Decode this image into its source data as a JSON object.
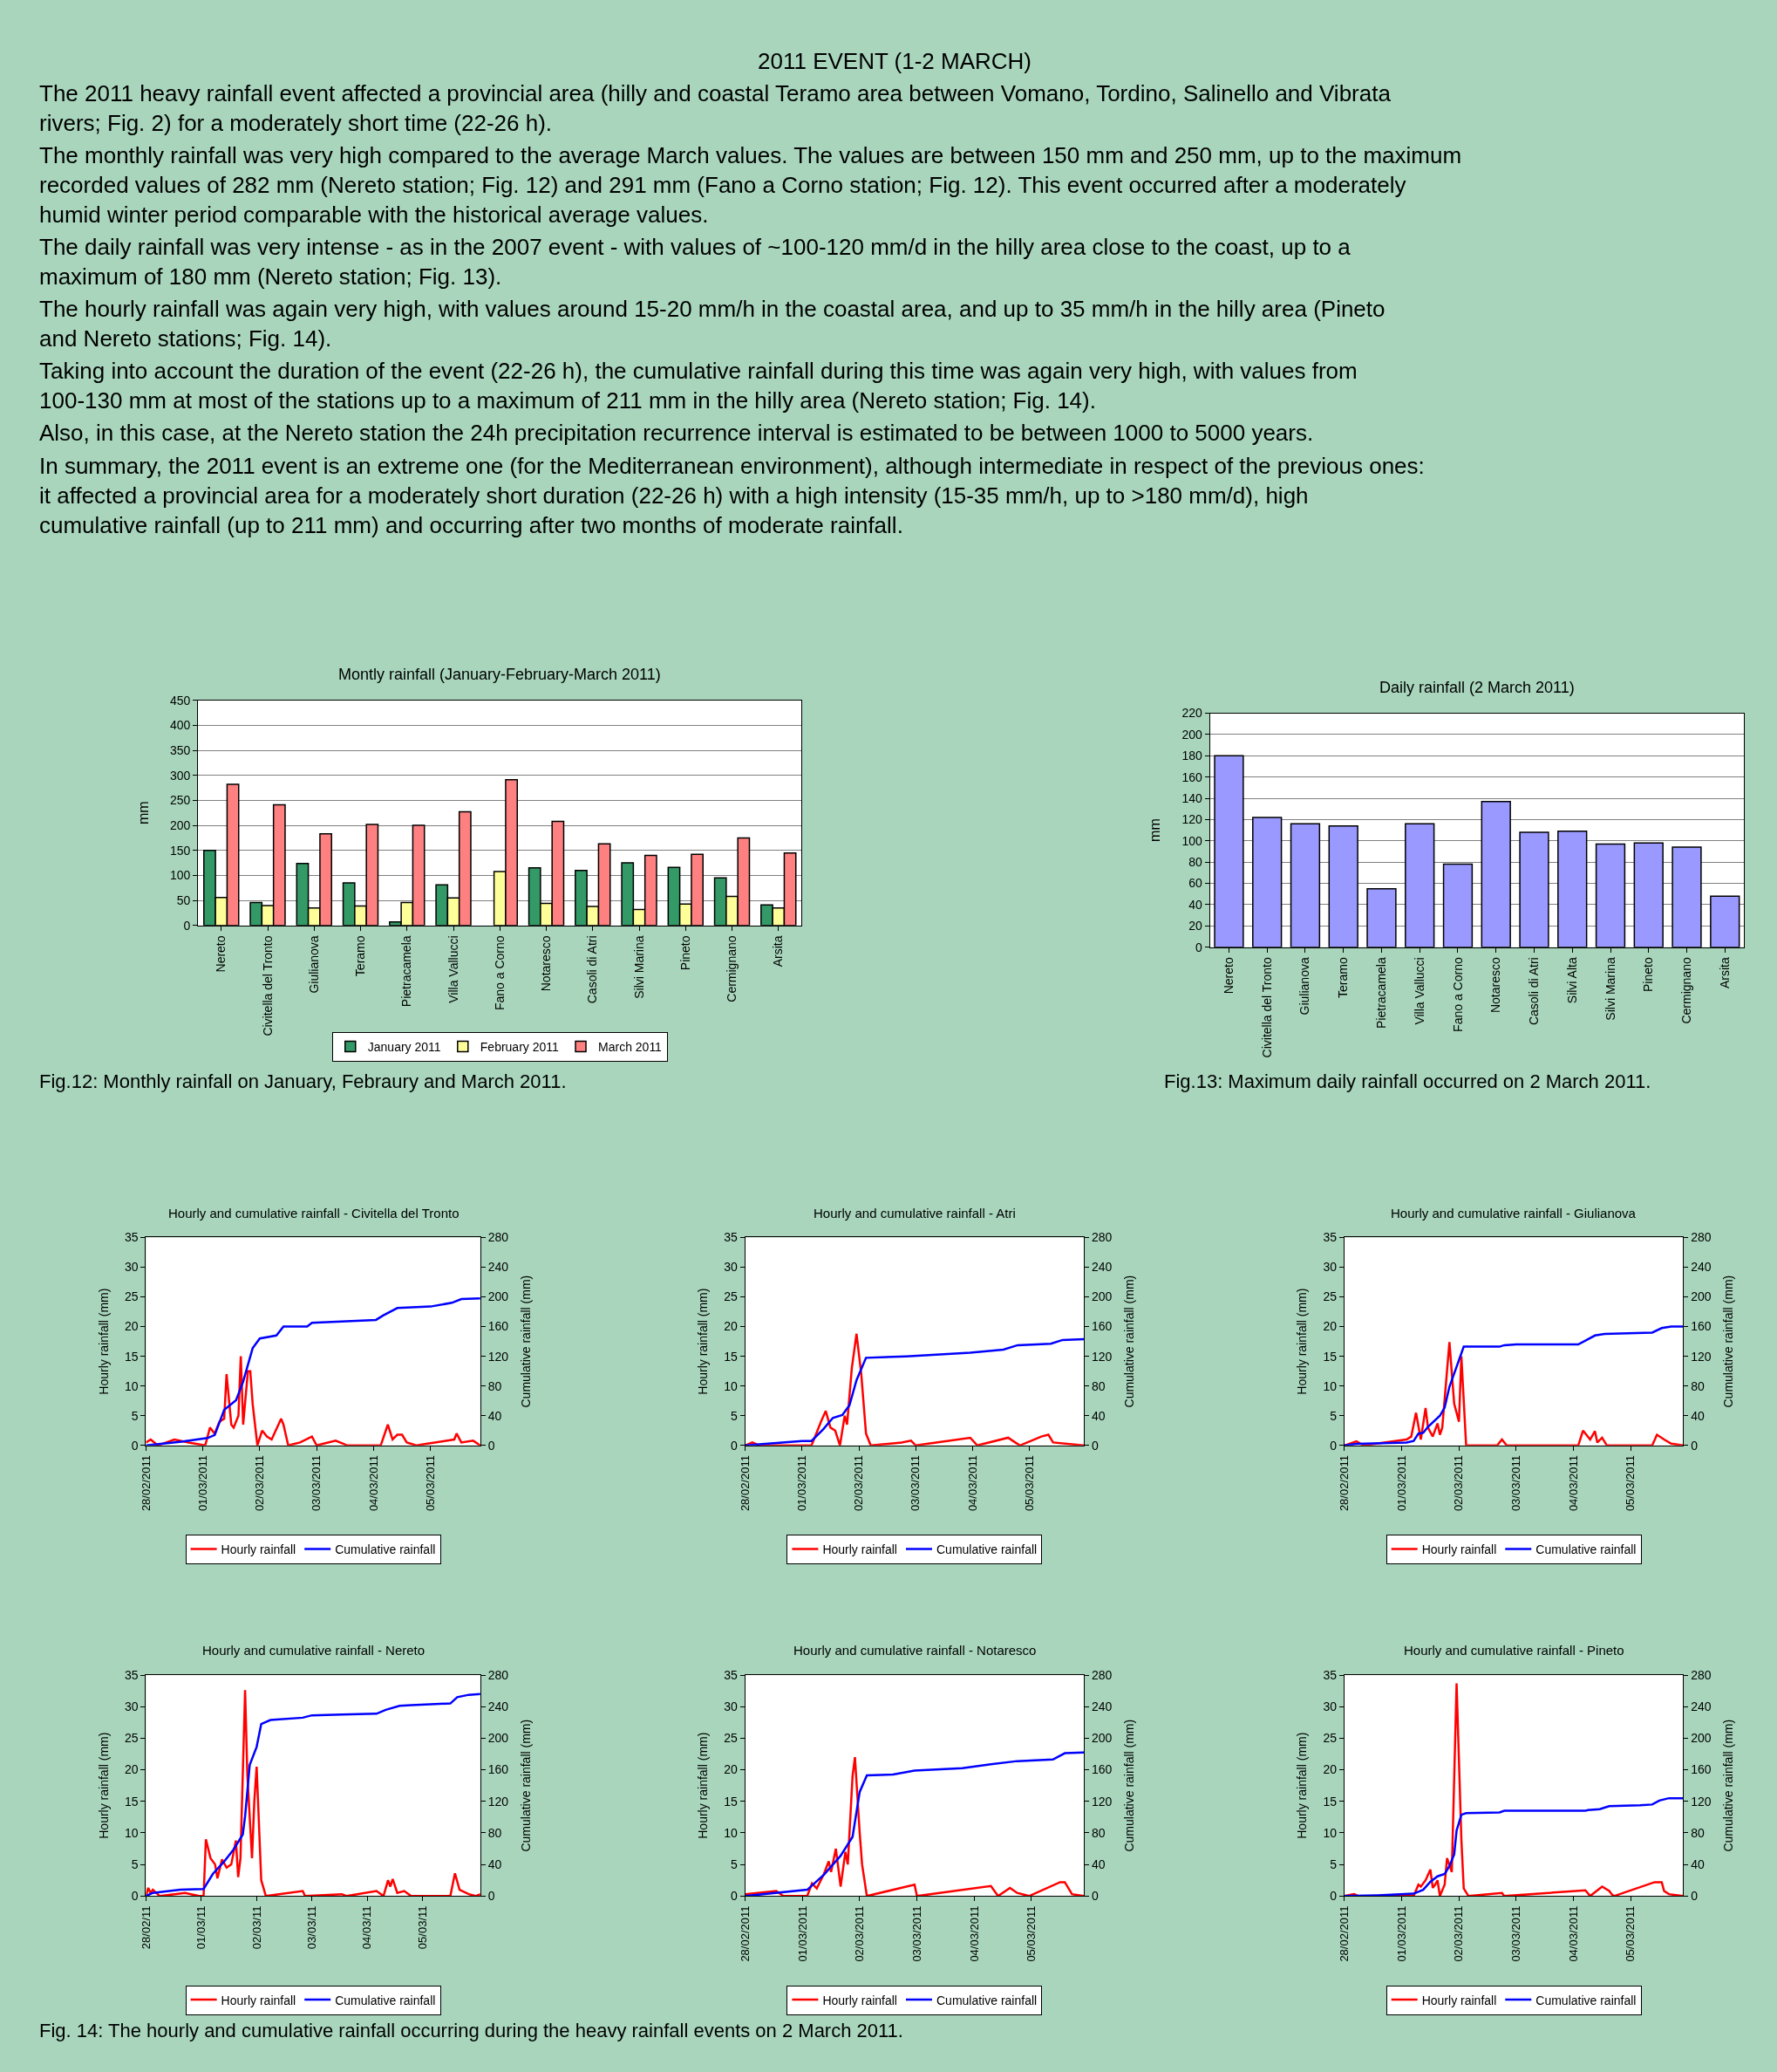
{
  "chart_data": [
    {
      "type": "other",
      "title": "2011 EVENT (1-2 MARCH)",
      "annotations": [
        "The 2011 heavy rainfall event affected a provincial area (hilly and coastal Teramo area between Vomano, Tordino, Salinello and Vibrata rivers; Fig. 2) for a moderately short time (22-26 h).",
        "The monthly rainfall was very high compared to the average March values. The values are between 150 mm and 250 mm, up to the maximum recorded values of 282 mm (Nereto station; Fig. 12) and 291 mm (Fano a Corno station; Fig. 12). This event occurred after a moderately humid winter period comparable with the historical average values.",
        "The daily rainfall was very intense - as in the 2007 event - with values of ~100-120 mm/d in the hilly area close to the coast, up to a maximum of 180 mm (Nereto station; Fig. 13).",
        "The hourly rainfall was again very high, with values around 15-20 mm/h in the coastal area, and up to 35 mm/h in the hilly area (Pineto and Nereto stations; Fig. 14).",
        "Taking into account the duration of the event (22-26 h), the cumulative rainfall during this time was again very high, with values from 100-130 mm at most of the stations up to a maximum of 211 mm in the hilly area (Nereto station; Fig. 14).",
        "Also, in this case, at the Nereto station the 24h precipitation recurrence interval is estimated to be between 1000 to 5000 years.",
        "In summary, the 2011 event is an extreme one (for the Mediterranean environment), although intermediate in respect of the previous ones: it affected a provincial area for a moderately short duration (22-26 h) with a high intensity (15-35 mm/h, up to >180 mm/d), high cumulative rainfall (up to 211 mm) and occurring after two months of moderate rainfall."
      ]
    },
    {
      "type": "bar",
      "title": "Montly rainfall (January-February-March 2011)",
      "ylabel": "mm",
      "categories": [
        "Nereto",
        "Civitella del Tronto",
        "Giulianova",
        "Teramo",
        "Pietracamela",
        "Villa Vallucci",
        "Fano a Corno",
        "Notaresco",
        "Casoli di Atri",
        "Silvi Marina",
        "Pineto",
        "Cermignano",
        "Arsita"
      ],
      "series": [
        {
          "name": "January 2011",
          "color": "#339966",
          "values": [
            150,
            46,
            124,
            85,
            7,
            81,
            null,
            115,
            110,
            125,
            116,
            95,
            41
          ]
        },
        {
          "name": "February 2011",
          "color": "#ffff99",
          "values": [
            56,
            40,
            35,
            39,
            46,
            55,
            108,
            44,
            38,
            32,
            43,
            58,
            35
          ]
        },
        {
          "name": "March 2011",
          "color": "#ff8080",
          "values": [
            282,
            241,
            183,
            202,
            200,
            227,
            291,
            208,
            163,
            140,
            142,
            175,
            145
          ]
        }
      ],
      "ylim": [
        0,
        450
      ],
      "yticks": [
        0,
        50,
        100,
        150,
        200,
        250,
        300,
        350,
        400,
        450
      ],
      "grid": "y",
      "legend": "bottom",
      "annotations": [
        "Fig.12: Monthly rainfall on January, Febraury and March 2011."
      ]
    },
    {
      "type": "bar",
      "title": "Daily rainfall (2 March 2011)",
      "ylabel": "mm",
      "categories": [
        "Nereto",
        "Civitella del Tronto",
        "Giulianova",
        "Teramo",
        "Pietracamela",
        "Villa Vallucci",
        "Fano a Corno",
        "Notaresco",
        "Casoli di Atri",
        "Silvi Alta",
        "Silvi Marina",
        "Pineto",
        "Cermignano",
        "Arsita"
      ],
      "values": [
        180,
        122,
        116,
        114,
        55,
        116,
        78,
        137,
        108,
        109,
        97,
        98,
        94,
        48
      ],
      "color": "#9999ff",
      "ylim": [
        0,
        220
      ],
      "yticks": [
        0,
        20,
        40,
        60,
        80,
        100,
        120,
        140,
        160,
        180,
        200,
        220
      ],
      "grid": "y",
      "annotations": [
        "Fig.13: Maximum daily rainfall occurred on 2 March 2011."
      ]
    },
    {
      "type": "line",
      "title": "Hourly and cumulative rainfall - Civitella del Tronto",
      "ylabel": "Hourly rainfall (mm)",
      "y2label": "Cumulative rainfall (mm)",
      "legend": "bottom",
      "xlim": [
        "2011-02-28T00:00",
        "2011-03-05T21:00"
      ],
      "xticks": [
        {
          "value": "2011-02-28",
          "label": "28/02/2011"
        },
        {
          "value": "2011-03-01",
          "label": "01/03/2011"
        },
        {
          "value": "2011-03-02",
          "label": "02/03/2011"
        },
        {
          "value": "2011-03-03",
          "label": "03/03/2011"
        },
        {
          "value": "2011-03-04",
          "label": "04/03/2011"
        },
        {
          "value": "2011-03-05",
          "label": "05/03/2011"
        }
      ],
      "ylim": [
        0,
        35
      ],
      "yticks": [
        0,
        5,
        10,
        15,
        20,
        25,
        30,
        35
      ],
      "y2lim": [
        0,
        280
      ],
      "y2ticks": [
        0,
        40,
        80,
        120,
        160,
        200,
        240,
        280
      ],
      "series": [
        {
          "name": "Hourly rainfall",
          "color": "#ff0000",
          "x": [
            "2011-02-28T00:00",
            "2011-02-28T02:00",
            "2011-02-28T05:00",
            "2011-02-28T12:00",
            "2011-02-28T18:00",
            "2011-03-01T01:00",
            "2011-03-01T03:00",
            "2011-03-01T05:00",
            "2011-03-01T07:00",
            "2011-03-01T09:00",
            "2011-03-01T10:00",
            "2011-03-01T12:00",
            "2011-03-01T13:00",
            "2011-03-01T15:00",
            "2011-03-01T16:00",
            "2011-03-01T17:00",
            "2011-03-01T19:00",
            "2011-03-01T20:00",
            "2011-03-01T21:00",
            "2011-03-01T23:00",
            "2011-03-02T01:00",
            "2011-03-02T03:00",
            "2011-03-02T05:00",
            "2011-03-02T09:00",
            "2011-03-02T10:00",
            "2011-03-02T12:00",
            "2011-03-02T17:00",
            "2011-03-02T22:00",
            "2011-03-03T00:00",
            "2011-03-03T08:00",
            "2011-03-03T13:00",
            "2011-03-04T03:00",
            "2011-03-04T06:00",
            "2011-03-04T08:00",
            "2011-03-04T10:00",
            "2011-03-04T12:00",
            "2011-03-04T14:00",
            "2011-03-04T18:00",
            "2011-03-05T10:00",
            "2011-03-05T11:00",
            "2011-03-05T13:00",
            "2011-03-05T18:00",
            "2011-03-05T21:00"
          ],
          "values": [
            0.5,
            1,
            0,
            1,
            0.5,
            0,
            3,
            2,
            4,
            4.5,
            12,
            3.5,
            3,
            5,
            15,
            3.5,
            12.5,
            12.5,
            7,
            0,
            2.5,
            1.5,
            1,
            4.5,
            3.5,
            0,
            0.5,
            1.5,
            0,
            0.8,
            0,
            0,
            3.5,
            1,
            1.8,
            1.8,
            0.5,
            0,
            1,
            2,
            0.5,
            0.8,
            0
          ]
        },
        {
          "name": "Cumulative rainfall",
          "color": "#0000ff",
          "axis": "y2",
          "x": [
            "2011-02-28T00:00",
            "2011-02-28T15:00",
            "2011-03-01T02:00",
            "2011-03-01T05:00",
            "2011-03-01T09:00",
            "2011-03-01T14:00",
            "2011-03-01T17:00",
            "2011-03-01T21:00",
            "2011-03-02T00:00",
            "2011-03-02T07:00",
            "2011-03-02T10:00",
            "2011-03-02T20:00",
            "2011-03-02T22:00",
            "2011-03-04T01:00",
            "2011-03-04T04:00",
            "2011-03-04T10:00",
            "2011-03-05T00:00",
            "2011-03-05T09:00",
            "2011-03-05T13:00",
            "2011-03-05T21:00"
          ],
          "values": [
            0,
            5,
            10,
            14,
            48,
            61,
            86,
            131,
            144,
            148,
            160,
            160,
            165,
            169,
            175,
            185,
            187,
            192,
            197,
            198
          ]
        }
      ]
    },
    {
      "type": "line",
      "title": "Hourly and cumulative rainfall - Atri",
      "ylabel": "Hourly rainfall (mm)",
      "y2label": "Cumulative rainfall (mm)",
      "legend": "bottom",
      "xlim": [
        "2011-02-28T00:00",
        "2011-03-05T23:00"
      ],
      "xticks": [
        {
          "value": "2011-02-28",
          "label": "28/02/2011"
        },
        {
          "value": "2011-03-01",
          "label": "01/03/2011"
        },
        {
          "value": "2011-03-02",
          "label": "02/03/2011"
        },
        {
          "value": "2011-03-03",
          "label": "03/03/2011"
        },
        {
          "value": "2011-03-04",
          "label": "04/03/2011"
        },
        {
          "value": "2011-03-05",
          "label": "05/03/2011"
        }
      ],
      "ylim": [
        0,
        35
      ],
      "yticks": [
        0,
        5,
        10,
        15,
        20,
        25,
        30,
        35
      ],
      "y2lim": [
        0,
        280
      ],
      "y2ticks": [
        0,
        40,
        80,
        120,
        160,
        200,
        240,
        280
      ],
      "series": [
        {
          "name": "Hourly rainfall",
          "color": "#ff0000",
          "x": [
            "2011-02-28T00:00",
            "2011-02-28T03:00",
            "2011-02-28T06:00",
            "2011-03-01T04:00",
            "2011-03-01T06:00",
            "2011-03-01T08:00",
            "2011-03-01T10:00",
            "2011-03-01T12:00",
            "2011-03-01T14:00",
            "2011-03-01T16:00",
            "2011-03-01T18:00",
            "2011-03-01T19:00",
            "2011-03-01T21:00",
            "2011-03-01T23:00",
            "2011-03-02T01:00",
            "2011-03-02T03:00",
            "2011-03-02T05:00",
            "2011-03-02T18:00",
            "2011-03-02T22:00",
            "2011-03-03T00:00",
            "2011-03-03T23:00",
            "2011-03-04T02:00",
            "2011-03-04T15:00",
            "2011-03-04T18:00",
            "2011-03-04T20:00",
            "2011-03-05T05:00",
            "2011-03-05T08:00",
            "2011-03-05T10:00",
            "2011-03-05T23:00"
          ],
          "values": [
            0,
            0.5,
            0,
            0,
            2,
            4,
            5.8,
            3,
            2.5,
            0,
            5,
            3.5,
            13,
            18.8,
            12,
            2,
            0,
            0.5,
            0.8,
            0,
            1.3,
            0,
            1.3,
            0.5,
            0,
            1.5,
            1.8,
            0.5,
            0
          ]
        },
        {
          "name": "Cumulative rainfall",
          "color": "#0000ff",
          "axis": "y2",
          "x": [
            "2011-02-28T00:00",
            "2011-03-01T00:00",
            "2011-03-01T04:00",
            "2011-03-01T09:00",
            "2011-03-01T13:00",
            "2011-03-01T17:00",
            "2011-03-01T20:00",
            "2011-03-01T23:00",
            "2011-03-02T03:00",
            "2011-03-02T20:00",
            "2011-03-03T23:00",
            "2011-03-04T13:00",
            "2011-03-04T19:00",
            "2011-03-05T09:00",
            "2011-03-05T14:00",
            "2011-03-05T23:00"
          ],
          "values": [
            0,
            6,
            6,
            22,
            37,
            41,
            54,
            88,
            118,
            120,
            125,
            129,
            135,
            137,
            142,
            143
          ]
        }
      ]
    },
    {
      "type": "line",
      "title": "Hourly and cumulative rainfall - Giulianova",
      "ylabel": "Hourly rainfall (mm)",
      "y2label": "Cumulative rainfall (mm)",
      "legend": "bottom",
      "xlim": [
        "2011-02-28T00:00",
        "2011-03-05T22:00"
      ],
      "xticks": [
        {
          "value": "2011-02-28",
          "label": "28/02/2011"
        },
        {
          "value": "2011-03-01",
          "label": "01/03/2011"
        },
        {
          "value": "2011-03-02",
          "label": "02/03/2011"
        },
        {
          "value": "2011-03-03",
          "label": "03/03/2011"
        },
        {
          "value": "2011-03-04",
          "label": "04/03/2011"
        },
        {
          "value": "2011-03-05",
          "label": "05/03/2011"
        }
      ],
      "ylim": [
        0,
        35
      ],
      "yticks": [
        0,
        5,
        10,
        15,
        20,
        25,
        30,
        35
      ],
      "y2lim": [
        0,
        280
      ],
      "y2ticks": [
        0,
        40,
        80,
        120,
        160,
        200,
        240,
        280
      ],
      "series": [
        {
          "name": "Hourly rainfall",
          "color": "#ff0000",
          "x": [
            "2011-02-28T00:00",
            "2011-02-28T05:00",
            "2011-02-28T08:00",
            "2011-03-01T02:00",
            "2011-03-01T04:00",
            "2011-03-01T06:00",
            "2011-03-01T08:00",
            "2011-03-01T10:00",
            "2011-03-01T11:00",
            "2011-03-01T13:00",
            "2011-03-01T15:00",
            "2011-03-01T16:00",
            "2011-03-01T17:00",
            "2011-03-01T20:00",
            "2011-03-01T22:00",
            "2011-03-02T00:00",
            "2011-03-02T01:00",
            "2011-03-02T03:00",
            "2011-03-02T16:00",
            "2011-03-02T18:00",
            "2011-03-02T20:00",
            "2011-03-04T02:00",
            "2011-03-04T04:00",
            "2011-03-04T07:00",
            "2011-03-04T09:00",
            "2011-03-04T10:00",
            "2011-03-04T12:00",
            "2011-03-04T14:00",
            "2011-03-05T09:00",
            "2011-03-05T11:00",
            "2011-03-05T14:00",
            "2011-03-05T17:00",
            "2011-03-05T22:00"
          ],
          "values": [
            0,
            0.7,
            0,
            1,
            1.5,
            5.5,
            1,
            6.3,
            3,
            1.5,
            3.7,
            1.8,
            3,
            17.4,
            7,
            4,
            15,
            0,
            0,
            1,
            0,
            0,
            2.5,
            1,
            2.4,
            0.5,
            1.3,
            0,
            0,
            1.8,
            1,
            0.3,
            0
          ]
        },
        {
          "name": "Cumulative rainfall",
          "color": "#0000ff",
          "axis": "y2",
          "x": [
            "2011-02-28T00:00",
            "2011-02-28T05:00",
            "2011-03-01T02:00",
            "2011-03-01T05:00",
            "2011-03-01T07:00",
            "2011-03-01T09:00",
            "2011-03-01T11:00",
            "2011-03-01T16:00",
            "2011-03-01T18:00",
            "2011-03-01T20:00",
            "2011-03-01T23:00",
            "2011-03-02T02:00",
            "2011-03-02T17:00",
            "2011-03-02T19:00",
            "2011-03-03T00:00",
            "2011-03-04T02:00",
            "2011-03-04T09:00",
            "2011-03-04T13:00",
            "2011-03-05T09:00",
            "2011-03-05T13:00",
            "2011-03-05T17:00",
            "2011-03-05T22:00"
          ],
          "values": [
            0,
            2,
            4,
            6,
            16,
            17,
            25,
            40,
            51,
            79,
            106,
            133,
            133,
            135,
            136,
            136,
            148,
            150,
            152,
            158,
            160,
            160
          ]
        }
      ]
    },
    {
      "type": "line",
      "title": "Hourly and cumulative rainfall - Nereto",
      "ylabel": "Hourly rainfall (mm)",
      "y2label": "Cumulative rainfall (mm)",
      "legend": "bottom",
      "xlim": [
        "2011-02-28T00:00",
        "2011-03-06T01:00"
      ],
      "xticks": [
        {
          "value": "2011-02-28",
          "label": "28/02/11"
        },
        {
          "value": "2011-03-01",
          "label": "01/03/11"
        },
        {
          "value": "2011-03-02",
          "label": "02/03/11"
        },
        {
          "value": "2011-03-03",
          "label": "03/03/11"
        },
        {
          "value": "2011-03-04",
          "label": "04/03/11"
        },
        {
          "value": "2011-03-05",
          "label": "05/03/11"
        }
      ],
      "ylim": [
        0,
        35
      ],
      "yticks": [
        0,
        5,
        10,
        15,
        20,
        25,
        30,
        35
      ],
      "y2lim": [
        0,
        280
      ],
      "y2ticks": [
        0,
        40,
        80,
        120,
        160,
        200,
        240,
        280
      ],
      "series": [
        {
          "name": "Hourly rainfall",
          "color": "#ff0000",
          "x": [
            "2011-02-28T00:00",
            "2011-02-28T01:00",
            "2011-02-28T02:00",
            "2011-02-28T03:00",
            "2011-02-28T06:00",
            "2011-02-28T17:00",
            "2011-02-28T23:00",
            "2011-03-01T01:00",
            "2011-03-01T02:00",
            "2011-03-01T04:00",
            "2011-03-01T06:00",
            "2011-03-01T07:00",
            "2011-03-01T09:00",
            "2011-03-01T11:00",
            "2011-03-01T13:00",
            "2011-03-01T15:00",
            "2011-03-01T16:00",
            "2011-03-01T17:00",
            "2011-03-01T19:00",
            "2011-03-01T20:00",
            "2011-03-01T22:00",
            "2011-03-01T23:00",
            "2011-03-02T00:00",
            "2011-03-02T02:00",
            "2011-03-02T04:00",
            "2011-03-02T20:00",
            "2011-03-02T21:00",
            "2011-03-03T13:00",
            "2011-03-03T15:00",
            "2011-03-04T04:00",
            "2011-03-04T07:00",
            "2011-03-04T09:00",
            "2011-03-04T10:00",
            "2011-03-04T11:00",
            "2011-03-04T13:00",
            "2011-03-04T16:00",
            "2011-03-04T19:00",
            "2011-03-05T12:00",
            "2011-03-05T14:00",
            "2011-03-05T16:00",
            "2011-03-05T20:00",
            "2011-03-05T23:00",
            "2011-03-06T01:00"
          ],
          "values": [
            0,
            1.3,
            0.5,
            1,
            0,
            0.5,
            0,
            0,
            9,
            6,
            5,
            2.8,
            5.8,
            4.5,
            5,
            8.8,
            3,
            6,
            32.6,
            19,
            6,
            15,
            20.5,
            2.5,
            0,
            0.8,
            0,
            0.3,
            0,
            0.8,
            0,
            2.5,
            1.5,
            2.7,
            0.5,
            0.8,
            0,
            0,
            3.6,
            1,
            0.3,
            0,
            0.3
          ]
        },
        {
          "name": "Cumulative rainfall",
          "color": "#0000ff",
          "axis": "y2",
          "x": [
            "2011-02-28T00:00",
            "2011-02-28T03:00",
            "2011-02-28T15:00",
            "2011-03-01T01:00",
            "2011-03-01T05:00",
            "2011-03-01T10:00",
            "2011-03-01T14:00",
            "2011-03-01T18:00",
            "2011-03-01T19:00",
            "2011-03-01T21:00",
            "2011-03-02T00:00",
            "2011-03-02T02:00",
            "2011-03-02T06:00",
            "2011-03-02T20:00",
            "2011-03-03T00:00",
            "2011-03-03T13:00",
            "2011-03-04T04:00",
            "2011-03-04T08:00",
            "2011-03-04T14:00",
            "2011-03-04T19:00",
            "2011-03-05T12:00",
            "2011-03-05T15:00",
            "2011-03-05T20:00",
            "2011-03-06T01:00"
          ],
          "values": [
            0,
            4,
            8,
            9,
            28,
            44,
            59,
            78,
            101,
            166,
            189,
            218,
            223,
            226,
            229,
            230,
            231,
            236,
            241,
            242,
            244,
            252,
            255,
            256
          ]
        }
      ],
      "annotations": [
        "Fig. 14: The hourly and cumulative rainfall occurring during the heavy rainfall events on 2 March 2011."
      ]
    },
    {
      "type": "line",
      "title": "Hourly and cumulative rainfall - Notaresco",
      "ylabel": "Hourly rainfall (mm)",
      "y2label": "Cumulative rainfall (mm)",
      "legend": "bottom",
      "xlim": [
        "2011-02-28T00:00",
        "2011-03-05T22:00"
      ],
      "xticks": [
        {
          "value": "2011-02-28",
          "label": "28/02/2011"
        },
        {
          "value": "2011-03-01",
          "label": "01/03/2011"
        },
        {
          "value": "2011-03-02",
          "label": "02/03/2011"
        },
        {
          "value": "2011-03-03",
          "label": "03/03/2011"
        },
        {
          "value": "2011-03-04",
          "label": "04/03/2011"
        },
        {
          "value": "2011-03-05",
          "label": "05/03/2011"
        }
      ],
      "ylim": [
        0,
        35
      ],
      "yticks": [
        0,
        5,
        10,
        15,
        20,
        25,
        30,
        35
      ],
      "y2lim": [
        0,
        280
      ],
      "y2ticks": [
        0,
        40,
        80,
        120,
        160,
        200,
        240,
        280
      ],
      "series": [
        {
          "name": "Hourly rainfall",
          "color": "#ff0000",
          "x": [
            "2011-02-28T00:00",
            "2011-02-28T13:00",
            "2011-02-28T16:00",
            "2011-03-01T02:00",
            "2011-03-01T04:00",
            "2011-03-01T06:00",
            "2011-03-01T09:00",
            "2011-03-01T11:00",
            "2011-03-01T12:00",
            "2011-03-01T14:00",
            "2011-03-01T16:00",
            "2011-03-01T18:00",
            "2011-03-01T19:00",
            "2011-03-01T21:00",
            "2011-03-01T22:00",
            "2011-03-02T00:00",
            "2011-03-02T01:00",
            "2011-03-02T03:00",
            "2011-03-02T23:00",
            "2011-03-03T00:00",
            "2011-03-04T07:00",
            "2011-03-04T10:00",
            "2011-03-04T15:00",
            "2011-03-04T18:00",
            "2011-03-04T23:00",
            "2011-03-05T12:00",
            "2011-03-05T14:00",
            "2011-03-05T17:00",
            "2011-03-05T22:00"
          ],
          "values": [
            0.3,
            0.8,
            0,
            0,
            2,
            1.2,
            3.5,
            5.5,
            3.8,
            7.5,
            1.5,
            7,
            5,
            19,
            22,
            10,
            5,
            0,
            1.8,
            0,
            1.6,
            0,
            1.3,
            0.5,
            0,
            2.2,
            2.2,
            0.3,
            0
          ]
        },
        {
          "name": "Cumulative rainfall",
          "color": "#0000ff",
          "axis": "y2",
          "x": [
            "2011-02-28T00:00",
            "2011-03-01T02:00",
            "2011-03-01T09:00",
            "2011-03-01T16:00",
            "2011-03-01T21:00",
            "2011-03-02T00:00",
            "2011-03-02T03:00",
            "2011-03-02T14:00",
            "2011-03-02T23:00",
            "2011-03-03T19:00",
            "2011-03-04T07:00",
            "2011-03-04T18:00",
            "2011-03-05T09:00",
            "2011-03-05T14:00",
            "2011-03-05T22:00"
          ],
          "values": [
            0,
            8,
            27,
            51,
            75,
            132,
            153,
            154,
            159,
            162,
            167,
            171,
            173,
            181,
            182
          ]
        }
      ]
    },
    {
      "type": "line",
      "title": "Hourly and cumulative rainfall - Pineto",
      "ylabel": "Hourly rainfall (mm)",
      "y2label": "Cumulative rainfall (mm)",
      "legend": "bottom",
      "xlim": [
        "2011-02-28T00:00",
        "2011-03-05T22:00"
      ],
      "xticks": [
        {
          "value": "2011-02-28",
          "label": "28/02/2011"
        },
        {
          "value": "2011-03-01",
          "label": "01/03/2011"
        },
        {
          "value": "2011-03-02",
          "label": "02/03/2011"
        },
        {
          "value": "2011-03-03",
          "label": "03/03/2011"
        },
        {
          "value": "2011-03-04",
          "label": "04/03/2011"
        },
        {
          "value": "2011-03-05",
          "label": "05/03/2011"
        }
      ],
      "ylim": [
        0,
        35
      ],
      "yticks": [
        0,
        5,
        10,
        15,
        20,
        25,
        30,
        35
      ],
      "y2lim": [
        0,
        280
      ],
      "y2ticks": [
        0,
        40,
        80,
        120,
        160,
        200,
        240,
        280
      ],
      "series": [
        {
          "name": "Hourly rainfall",
          "color": "#ff0000",
          "x": [
            "2011-02-28T00:00",
            "2011-02-28T04:00",
            "2011-02-28T06:00",
            "2011-03-01T05:00",
            "2011-03-01T07:00",
            "2011-03-01T08:00",
            "2011-03-01T10:00",
            "2011-03-01T12:00",
            "2011-03-01T13:00",
            "2011-03-01T14:00",
            "2011-03-01T15:00",
            "2011-03-01T16:00",
            "2011-03-01T18:00",
            "2011-03-01T19:00",
            "2011-03-01T21:00",
            "2011-03-01T23:00",
            "2011-03-02T01:00",
            "2011-03-02T02:00",
            "2011-03-02T04:00",
            "2011-03-02T18:00",
            "2011-03-02T19:00",
            "2011-03-04T05:00",
            "2011-03-04T07:00",
            "2011-03-04T12:00",
            "2011-03-04T15:00",
            "2011-03-04T16:00",
            "2011-03-04T17:00",
            "2011-03-05T10:00",
            "2011-03-05T13:00",
            "2011-03-05T14:00",
            "2011-03-05T16:00",
            "2011-03-05T22:00"
          ],
          "values": [
            0,
            0.3,
            0,
            0,
            1.8,
            1.5,
            2.5,
            4.2,
            1.3,
            1.8,
            2.5,
            0,
            1.8,
            6,
            3.8,
            33.7,
            9,
            1.2,
            0,
            0.5,
            0,
            0.9,
            0,
            1.5,
            0.8,
            0.3,
            0,
            2.2,
            2.2,
            0.8,
            0.3,
            0
          ]
        },
        {
          "name": "Cumulative rainfall",
          "color": "#0000ff",
          "axis": "y2",
          "x": [
            "2011-02-28T00:00",
            "2011-02-28T14:00",
            "2011-03-01T05:00",
            "2011-03-01T09:00",
            "2011-03-01T12:00",
            "2011-03-01T15:00",
            "2011-03-01T18:00",
            "2011-03-01T20:00",
            "2011-03-01T22:00",
            "2011-03-01T23:00",
            "2011-03-02T01:00",
            "2011-03-02T03:00",
            "2011-03-02T17:00",
            "2011-03-02T19:00",
            "2011-03-04T05:00",
            "2011-03-04T06:00",
            "2011-03-04T11:00",
            "2011-03-04T15:00",
            "2011-03-05T04:00",
            "2011-03-05T09:00",
            "2011-03-05T12:00",
            "2011-03-05T16:00",
            "2011-03-05T22:00"
          ],
          "values": [
            0,
            1,
            3,
            8,
            18,
            25,
            28,
            38,
            53,
            83,
            103,
            105,
            106,
            108,
            108,
            109,
            110,
            114,
            115,
            116,
            121,
            124,
            124
          ]
        }
      ]
    }
  ]
}
